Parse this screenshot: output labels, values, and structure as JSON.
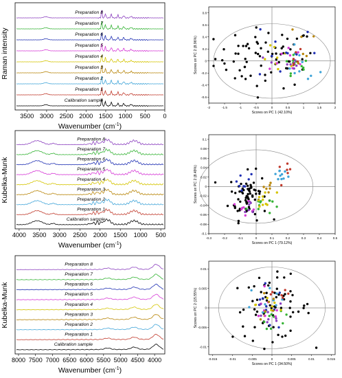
{
  "chart_data": [
    {
      "type": "line",
      "panel": "raman-spectra",
      "ylabel": "Raman intensity",
      "xlabel": "Wavenumber (cm",
      "xlabel_sup": "-1",
      "xlabel_end": ")",
      "xlim": [
        3800,
        0
      ],
      "xticks": [
        3500,
        3000,
        2500,
        2000,
        1500,
        1000,
        500,
        0
      ],
      "series": [
        {
          "name": "Calibration sample",
          "color": "#000000"
        },
        {
          "name": "Preparation 1",
          "color": "#c0392b"
        },
        {
          "name": "Preparation 2",
          "color": "#3fa4d8"
        },
        {
          "name": "Preparation 3",
          "color": "#b8860b"
        },
        {
          "name": "Preparation 4",
          "color": "#d4c400"
        },
        {
          "name": "Preparation 5",
          "color": "#d63ad6"
        },
        {
          "name": "Preparation 6",
          "color": "#1f2fb3"
        },
        {
          "name": "Preparation 7",
          "color": "#34b334"
        },
        {
          "name": "Preparation 8",
          "color": "#8b3fbf"
        }
      ]
    },
    {
      "type": "line",
      "panel": "nir-mir-spectra",
      "ylabel": "Kubelka-Munk",
      "xlabel": "Wavenumber (cm",
      "xlabel_sup": "-1",
      "xlabel_end": ")",
      "xlim": [
        4100,
        400
      ],
      "xticks": [
        4000,
        3500,
        3000,
        2500,
        2000,
        1500,
        1000,
        500
      ],
      "series": [
        {
          "name": "Calibration sample",
          "color": "#000000"
        },
        {
          "name": "Preparation 1",
          "color": "#c0392b"
        },
        {
          "name": "Preparation 2",
          "color": "#3fa4d8"
        },
        {
          "name": "Preparation 3",
          "color": "#b8860b"
        },
        {
          "name": "Preparation 4",
          "color": "#d4c400"
        },
        {
          "name": "Preparation 5",
          "color": "#d63ad6"
        },
        {
          "name": "Preparation 6",
          "color": "#1f2fb3"
        },
        {
          "name": "Preparation 7",
          "color": "#34b334"
        },
        {
          "name": "Preparation 8",
          "color": "#8b3fbf"
        }
      ]
    },
    {
      "type": "line",
      "panel": "nir-spectra",
      "ylabel": "Kubelka-Munk",
      "xlabel": "Wavenumber (cm",
      "xlabel_sup": "-1",
      "xlabel_end": ")",
      "xlim": [
        8100,
        3700
      ],
      "xticks": [
        8000,
        7500,
        7000,
        6500,
        6000,
        5500,
        5000,
        4500,
        4000
      ],
      "series": [
        {
          "name": "Calibration sample",
          "color": "#000000"
        },
        {
          "name": "Preparation 1",
          "color": "#c0392b"
        },
        {
          "name": "Preparation 2",
          "color": "#3fa4d8"
        },
        {
          "name": "Preparation 3",
          "color": "#b8860b"
        },
        {
          "name": "Preparation 4",
          "color": "#d4c400"
        },
        {
          "name": "Preparation 5",
          "color": "#d63ad6"
        },
        {
          "name": "Preparation 6",
          "color": "#1f2fb3"
        },
        {
          "name": "Preparation 7",
          "color": "#34b334"
        },
        {
          "name": "Preparation 8",
          "color": "#8b3fbf"
        }
      ]
    },
    {
      "type": "scatter",
      "panel": "pca-raman",
      "xlabel": "Scores on PC 1 (42.10%)",
      "ylabel": "Scores on PC 2 (8.96%)",
      "xlim": [
        -2,
        2
      ],
      "ylim": [
        -0.7,
        0.9
      ],
      "xticks": [
        -2,
        -1.5,
        -1,
        -0.5,
        0,
        0.5,
        1,
        1.5,
        2
      ],
      "yticks": [
        -0.6,
        -0.4,
        -0.2,
        0,
        0.2,
        0.4,
        0.6,
        0.8
      ],
      "ellipse": {
        "rx": 1.85,
        "ry": 0.62
      }
    },
    {
      "type": "scatter",
      "panel": "pca-nir-mir",
      "xlabel": "Scores on PC 1 (79.12%)",
      "ylabel": "Scores on PC 2 (8.49%)",
      "xlim": [
        -0.3,
        0.5
      ],
      "ylim": [
        -0.1,
        0.11
      ],
      "xticks": [
        -0.3,
        -0.2,
        -0.1,
        0,
        0.1,
        0.2,
        0.3,
        0.4,
        0.5
      ],
      "yticks": [
        -0.1,
        -0.08,
        -0.06,
        -0.04,
        -0.02,
        0,
        0.02,
        0.04,
        0.06,
        0.08,
        0.1
      ],
      "ellipse": {
        "rx": 0.36,
        "ry": 0.078
      }
    },
    {
      "type": "scatter",
      "panel": "pca-nir",
      "xlabel": "Scores on PC 1 (34.50%)",
      "ylabel": "Scores on PC 2 (15.55%)",
      "xlim": [
        -0.016,
        0.016
      ],
      "ylim": [
        -0.012,
        0.012
      ],
      "xticks": [
        -0.015,
        -0.01,
        -0.005,
        0,
        0.005,
        0.01,
        0.015
      ],
      "yticks": [
        -0.01,
        -0.005,
        0,
        0.005,
        0.01
      ],
      "ellipse": {
        "rx": 0.0135,
        "ry": 0.0105
      }
    }
  ],
  "colors": {
    "calibration": "#000000",
    "prep1": "#c0392b",
    "prep2": "#3fa4d8",
    "prep3": "#b8860b",
    "prep4": "#d4c400",
    "prep5": "#d63ad6",
    "prep6": "#1f2fb3",
    "prep7": "#34b334",
    "prep8": "#8b3fbf"
  }
}
